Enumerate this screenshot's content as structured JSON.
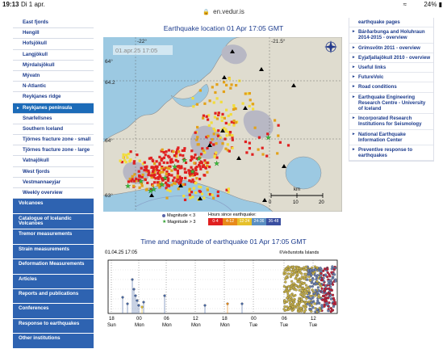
{
  "status_bar": {
    "time": "19:13",
    "date": "Di 1 apr.",
    "battery": "24%"
  },
  "url": "en.vedur.is",
  "sidebar": {
    "sub_items": [
      {
        "label": "East fjords",
        "active": false
      },
      {
        "label": "Hengill",
        "active": false
      },
      {
        "label": "Hofsjökull",
        "active": false
      },
      {
        "label": "Langjökull",
        "active": false
      },
      {
        "label": "Mýrdalsjökull",
        "active": false
      },
      {
        "label": "Mývatn",
        "active": false
      },
      {
        "label": "N-Atlantic",
        "active": false
      },
      {
        "label": "Reykjanes ridge",
        "active": false
      },
      {
        "label": "Reykjanes peninsula",
        "active": true
      },
      {
        "label": "Snæfellsnes",
        "active": false
      },
      {
        "label": "Southern Iceland",
        "active": false
      },
      {
        "label": "Tjörnes fracture zone - small",
        "active": false
      },
      {
        "label": "Tjörnes fracture zone - large",
        "active": false
      },
      {
        "label": "Vatnajökull",
        "active": false
      },
      {
        "label": "West fjords",
        "active": false
      },
      {
        "label": "Vestmannaeyjar",
        "active": false
      },
      {
        "label": "Weekly overview",
        "active": false
      }
    ],
    "main_items": [
      "Volcanoes",
      "Catalogue of Icelandic Volcanoes",
      "Tremor measurements",
      "Strain measurements",
      "Deformation Measurements",
      "Articles",
      "Reports and publications",
      "Conferences",
      "Response to earthquakes",
      "Other institutions"
    ]
  },
  "map": {
    "title": "Earthquake location   01 Apr 17:05 GMT",
    "timestamp": "01.apr.25  17:05",
    "lat_labels": [
      "64°",
      "64.2",
      "64°"
    ],
    "top_labels": [
      "-22°",
      "-21.5°"
    ],
    "bottom_labels": [
      "63°"
    ],
    "scale_unit": "km",
    "scale_ticks": [
      "0",
      "10",
      "20"
    ],
    "colors": {
      "sea": "#9cc9e2",
      "land": "#dfdccf",
      "lava": "#b8b8c4",
      "recent": "#e02020",
      "mid": "#e3a21a",
      "old": "#f2dd3a",
      "star": "#3cc43c"
    }
  },
  "legend": {
    "small_label": "Magnitude < 3",
    "large_label": "Magnitude > 3",
    "hours_title": "Hours since earthquake:",
    "bins": [
      {
        "label": "0-4",
        "color": "#e02020"
      },
      {
        "label": "4-12",
        "color": "#e88a1a"
      },
      {
        "label": "12-24",
        "color": "#e6c02a"
      },
      {
        "label": "24-36",
        "color": "#5a8fc2"
      },
      {
        "label": "36-48",
        "color": "#3a4fa0"
      }
    ]
  },
  "plot": {
    "title": "Time and magnitude of earthquake   01 Apr 17:05 GMT",
    "timestamp": "01.04.25 17:05",
    "credit": "©Veðurstofa Íslands",
    "hour_labels": [
      "18",
      "00",
      "06",
      "12",
      "18",
      "00",
      "06",
      "12"
    ],
    "day_labels": [
      "Sun",
      "Mon",
      "Mon",
      "Mon",
      "Mon",
      "Tue",
      "Tue",
      "Tue"
    ]
  },
  "rightcol": {
    "items": [
      {
        "label": "earthquake pages",
        "arrow": false
      },
      {
        "label": "Bárðarbunga and Holuhraun 2014-2015 - overview",
        "arrow": true
      },
      {
        "label": "Grímsvötn 2011 - overview",
        "arrow": true
      },
      {
        "label": "Eyjafjallajökull 2010 - overview",
        "arrow": true
      },
      {
        "label": "Useful links",
        "arrow": true
      },
      {
        "label": "FutureVolc",
        "arrow": true
      },
      {
        "label": "Road conditions",
        "arrow": true
      },
      {
        "label": "Earthquake Engineering Research Centre - University of Iceland",
        "arrow": true
      },
      {
        "label": "Incorporated Research Institutions for Seismology",
        "arrow": true
      },
      {
        "label": "National Earthquake Information Center",
        "arrow": true
      },
      {
        "label": "Preventive response to earthquakes",
        "arrow": true
      }
    ]
  }
}
